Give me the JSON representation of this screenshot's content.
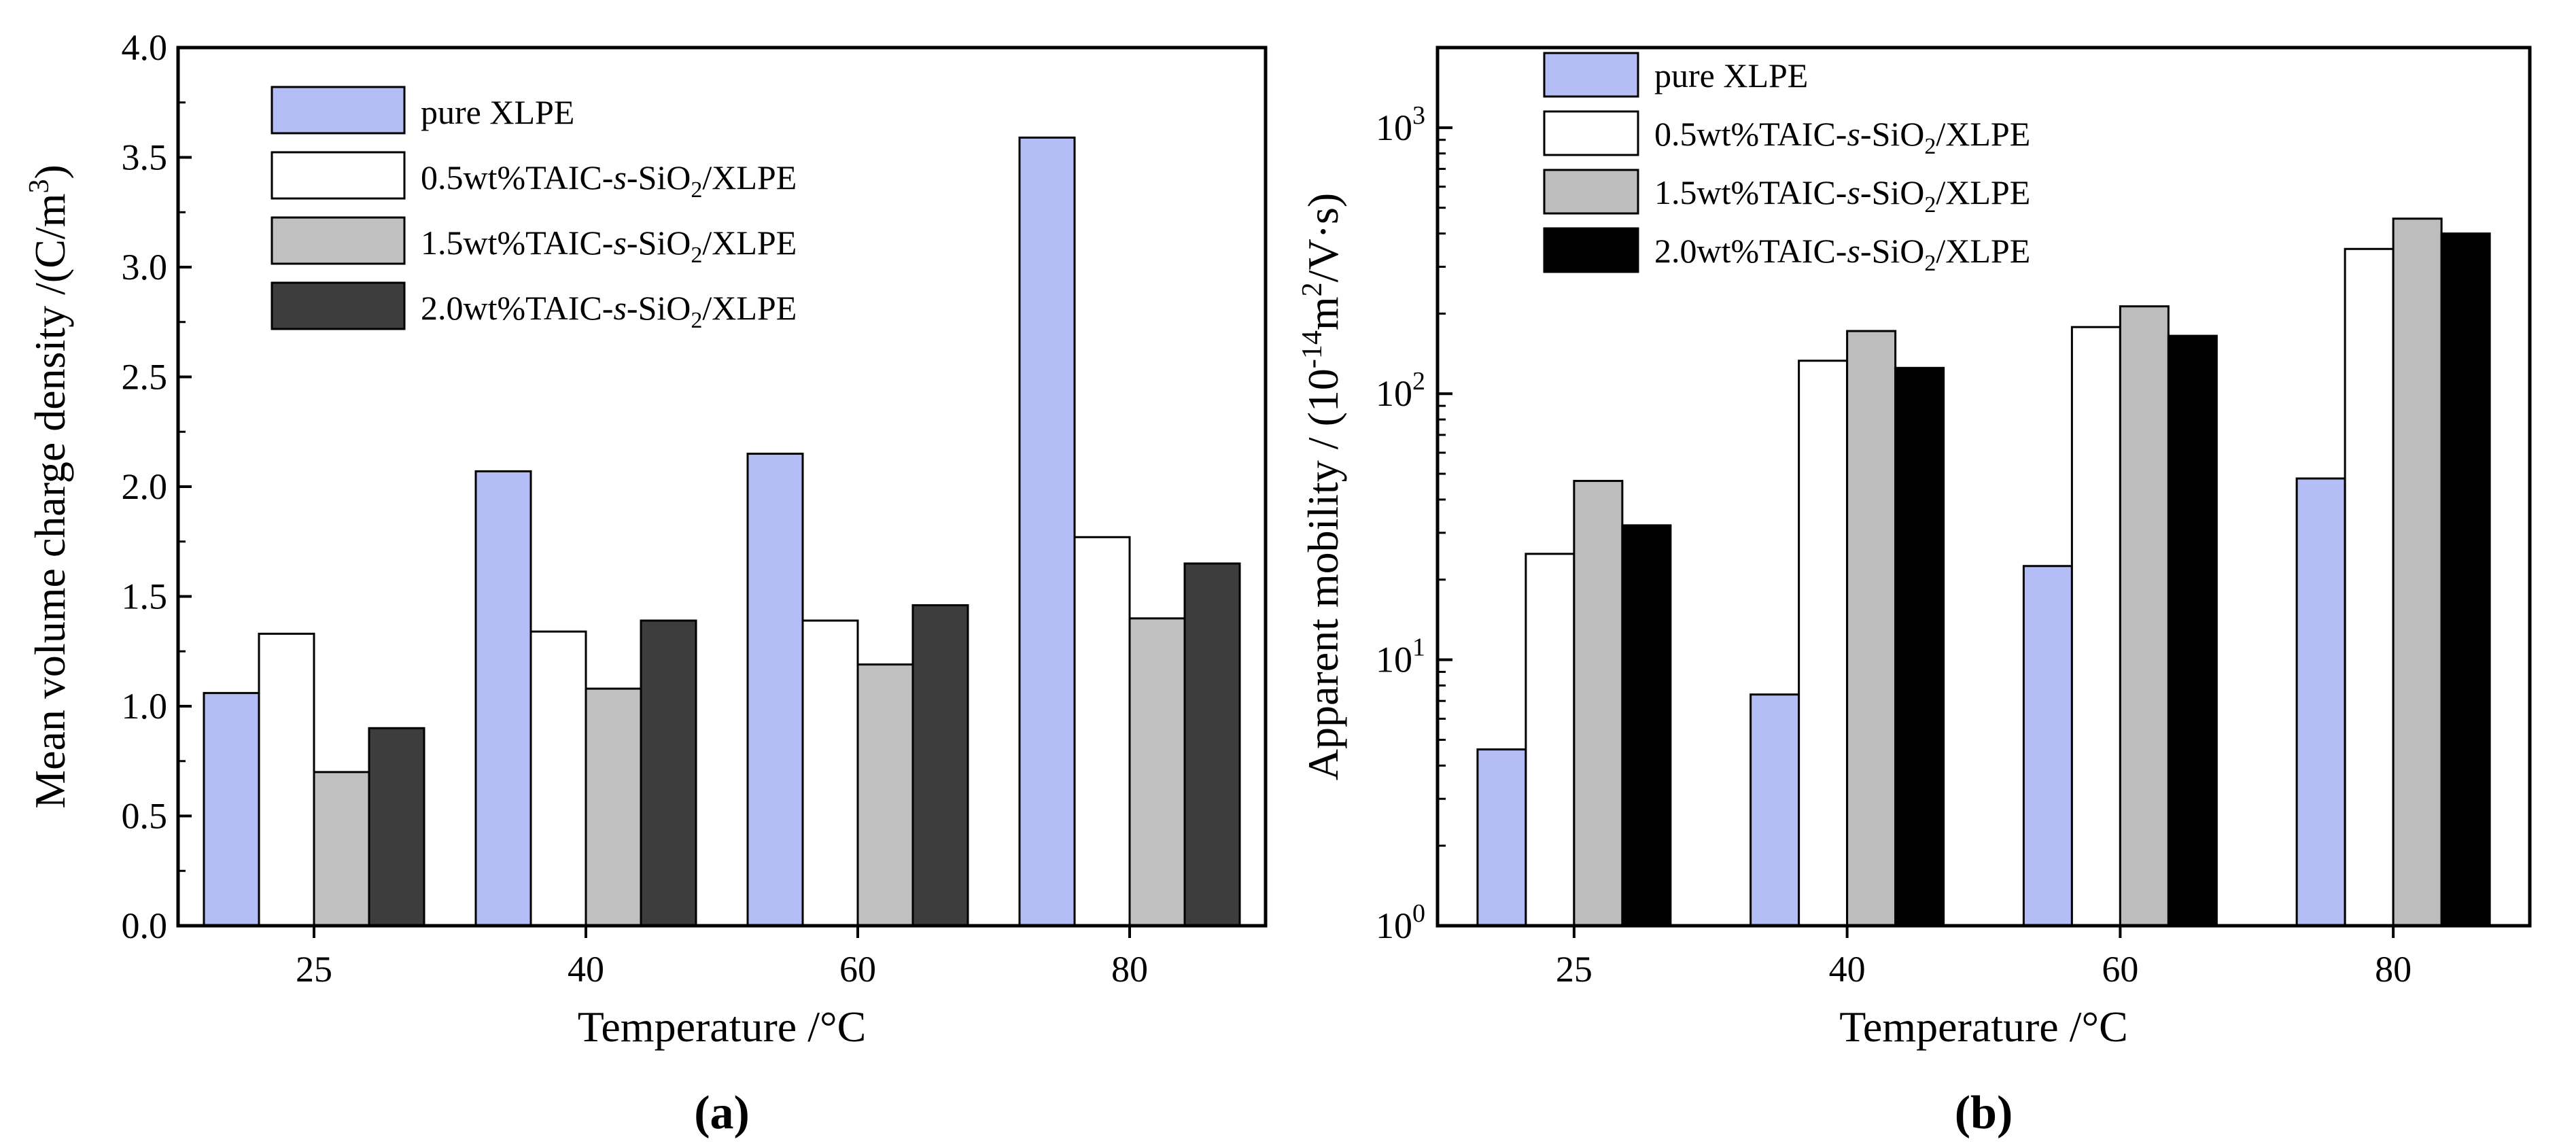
{
  "colors": {
    "pure_xlpe": "#b4bdf5",
    "wt05": "#ffffff",
    "wt15a": "#c0c0c0",
    "wt15b": "#bdbdbd",
    "wt20a": "#3d3d3d",
    "wt20b": "#000000"
  },
  "legend": {
    "pure": "pure XLPE",
    "prefix": "0.5wt%TAIC-",
    "prefix15": "1.5wt%TAIC-",
    "prefix20": "2.0wt%TAIC-",
    "s": "s",
    "dash": "-SiO",
    "sub": "2",
    "suffix": "/XLPE"
  },
  "chart_data": [
    {
      "type": "bar",
      "panel_label": "(a)",
      "categories": [
        "25",
        "40",
        "60",
        "80"
      ],
      "xlabel": "Temperature /°C",
      "ylabel": "Mean volume charge density /(C/m³)",
      "ylim": [
        0,
        4.0
      ],
      "yticks": [
        "0.0",
        "0.5",
        "1.0",
        "1.5",
        "2.0",
        "2.5",
        "3.0",
        "3.5",
        "4.0"
      ],
      "legend_position": "top-left",
      "series": [
        {
          "name": "pure XLPE",
          "color_key": "pure_xlpe",
          "values": [
            1.06,
            2.07,
            2.15,
            3.59
          ]
        },
        {
          "name": "0.5wt%TAIC-s-SiO2/XLPE",
          "color_key": "wt05",
          "values": [
            1.33,
            1.34,
            1.39,
            1.77
          ]
        },
        {
          "name": "1.5wt%TAIC-s-SiO2/XLPE",
          "color_key": "wt15a",
          "values": [
            0.7,
            1.08,
            1.19,
            1.4
          ]
        },
        {
          "name": "2.0wt%TAIC-s-SiO2/XLPE",
          "color_key": "wt20a",
          "values": [
            0.9,
            1.39,
            1.46,
            1.65
          ]
        }
      ]
    },
    {
      "type": "bar",
      "panel_label": "(b)",
      "categories": [
        "25",
        "40",
        "60",
        "80"
      ],
      "xlabel": "Temperature /°C",
      "ylabel": "Apparent mobility / (10⁻¹⁴m²/V·s)",
      "yscale": "log",
      "ylim": [
        1,
        2000
      ],
      "yticks": [
        "10⁰",
        "10¹",
        "10²",
        "10³"
      ],
      "legend_position": "top-left",
      "series": [
        {
          "name": "pure XLPE",
          "color_key": "pure_xlpe",
          "values": [
            4.6,
            7.4,
            22.5,
            48
          ]
        },
        {
          "name": "0.5wt%TAIC-s-SiO2/XLPE",
          "color_key": "wt05",
          "values": [
            25,
            133,
            178,
            350
          ]
        },
        {
          "name": "1.5wt%TAIC-s-SiO2/XLPE",
          "color_key": "wt15b",
          "values": [
            47,
            172,
            213,
            455
          ]
        },
        {
          "name": "2.0wt%TAIC-s-SiO2/XLPE",
          "color_key": "wt20b",
          "values": [
            32,
            125,
            165,
            400
          ]
        }
      ]
    }
  ]
}
